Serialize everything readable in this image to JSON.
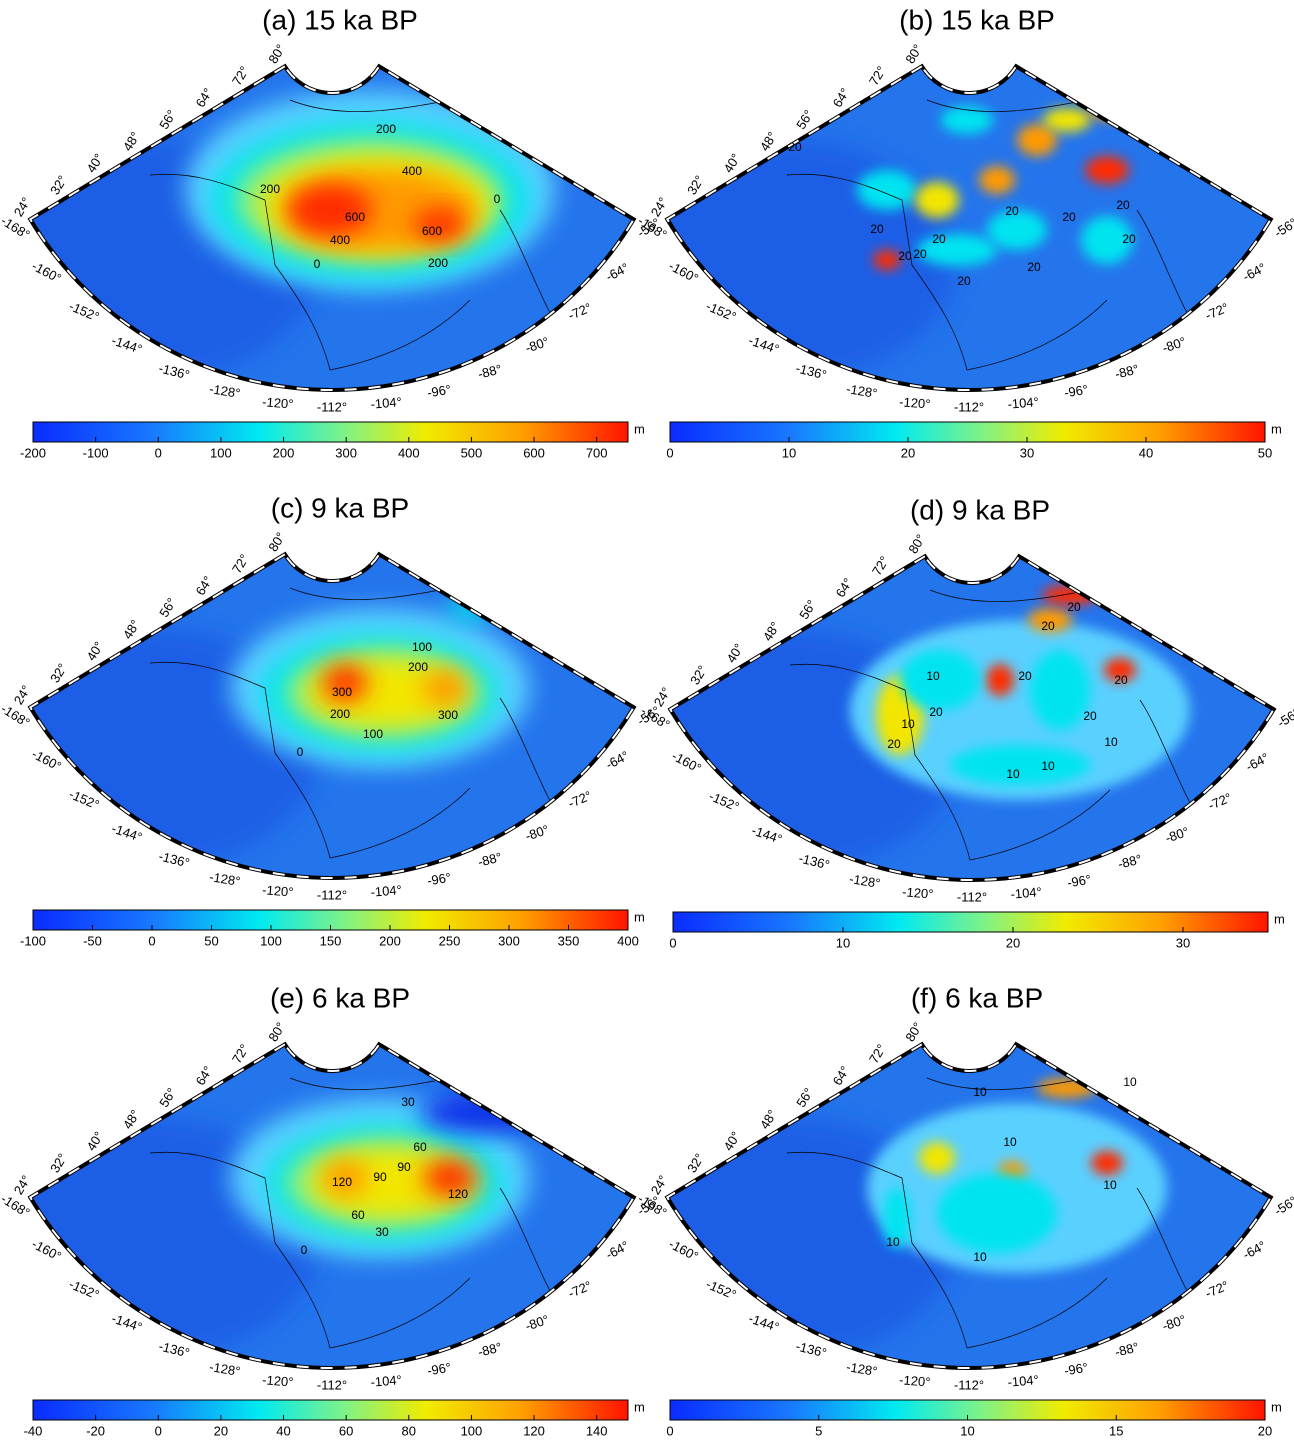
{
  "graticule": {
    "latitudes": [
      "24°",
      "32°",
      "40°",
      "48°",
      "56°",
      "64°",
      "72°",
      "80°"
    ],
    "longitudes": [
      "-168°",
      "-160°",
      "-152°",
      "-144°",
      "-136°",
      "-128°",
      "-120°",
      "-112°",
      "-104°",
      "-96°",
      "-88°",
      "-80°",
      "-72°",
      "-64°",
      "-56°"
    ]
  },
  "panels": [
    {
      "title": "(a) 15 ka BP",
      "colorbar": {
        "unit": "m",
        "lim": [
          -200,
          750
        ],
        "ticks": [
          -200,
          -100,
          0,
          100,
          200,
          300,
          400,
          500,
          600,
          700
        ]
      },
      "contour_labels": [
        "200",
        "200",
        "400",
        "600",
        "600",
        "400",
        "200",
        "0",
        "0"
      ]
    },
    {
      "title": "(b) 15 ka BP",
      "colorbar": {
        "unit": "m",
        "lim": [
          0,
          50
        ],
        "ticks": [
          0,
          10,
          20,
          30,
          40,
          50
        ]
      },
      "contour_labels": [
        "20",
        "20",
        "20",
        "20",
        "20",
        "20",
        "20",
        "20",
        "20",
        "20",
        "20"
      ]
    },
    {
      "title": "(c) 9 ka BP",
      "colorbar": {
        "unit": "m",
        "lim": [
          -100,
          400
        ],
        "ticks": [
          -100,
          -50,
          0,
          50,
          100,
          150,
          200,
          250,
          300,
          350,
          400
        ]
      },
      "contour_labels": [
        "300",
        "200",
        "100",
        "300",
        "200",
        "100",
        "0"
      ]
    },
    {
      "title": "(d) 9 ka BP",
      "colorbar": {
        "unit": "m",
        "lim": [
          0,
          35
        ],
        "ticks": [
          0,
          10,
          20,
          30
        ]
      },
      "contour_labels": [
        "20",
        "10",
        "20",
        "20",
        "10",
        "20",
        "20",
        "10",
        "10",
        "10",
        "20",
        "20"
      ]
    },
    {
      "title": "(e) 6 ka BP",
      "colorbar": {
        "unit": "m",
        "lim": [
          -40,
          150
        ],
        "ticks": [
          -40,
          -20,
          0,
          20,
          40,
          60,
          80,
          100,
          120,
          140
        ]
      },
      "contour_labels": [
        "120",
        "90",
        "90",
        "120",
        "60",
        "30",
        "0",
        "60",
        "30"
      ]
    },
    {
      "title": "(f) 6 ka BP",
      "colorbar": {
        "unit": "m",
        "lim": [
          0,
          20
        ],
        "ticks": [
          0,
          5,
          10,
          15,
          20
        ]
      },
      "contour_labels": [
        "10",
        "10",
        "10",
        "10",
        "10",
        "10"
      ]
    }
  ]
}
